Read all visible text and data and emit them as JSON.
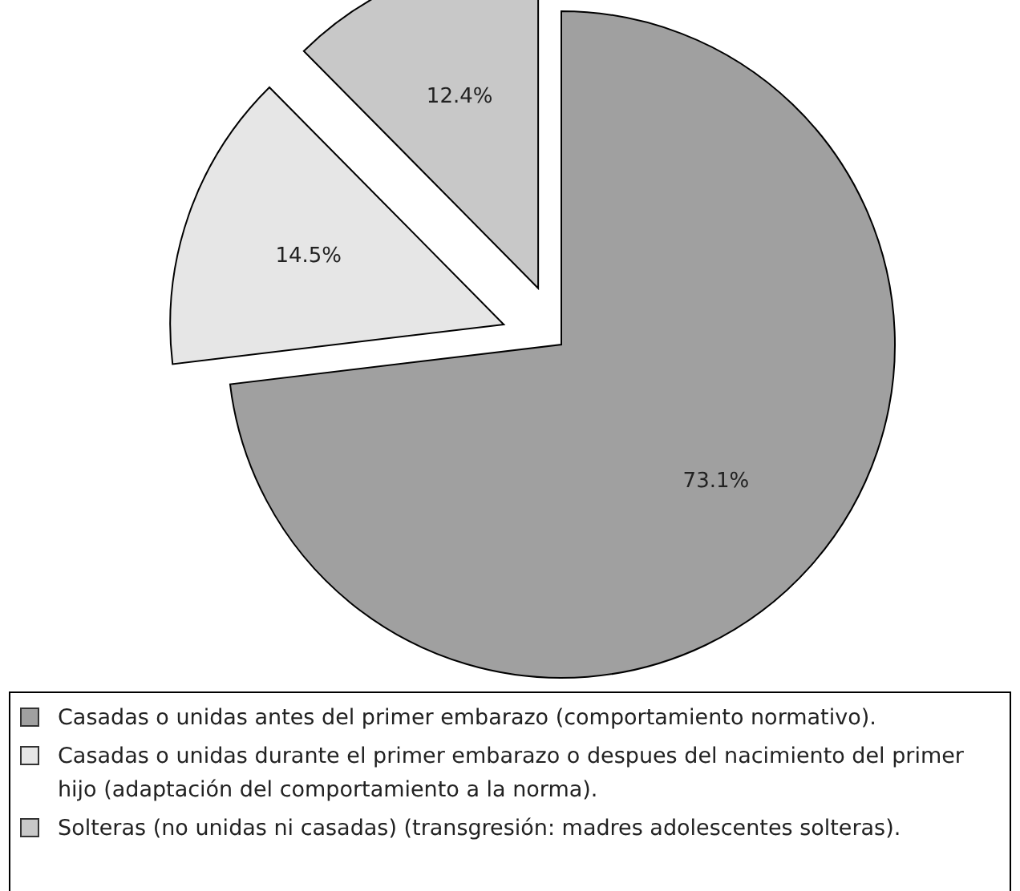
{
  "chart_data": {
    "type": "pie",
    "categories": [
      "Casadas o unidas antes del primer embarazo (comportamiento normativo).",
      "Casadas o unidas durante el primer embarazo o despues del nacimiento del primer hijo (adaptación del comportamiento a la norma).",
      "Solteras (no unidas ni casadas) (transgresión: madres adolescentes solteras)."
    ],
    "values": [
      73.1,
      14.5,
      12.4
    ],
    "colors": [
      "#a0a0a0",
      "#e6e6e6",
      "#c8c8c8"
    ],
    "value_labels": [
      "73.1%",
      "14.5%",
      "12.4%"
    ],
    "legend": "bottom"
  }
}
